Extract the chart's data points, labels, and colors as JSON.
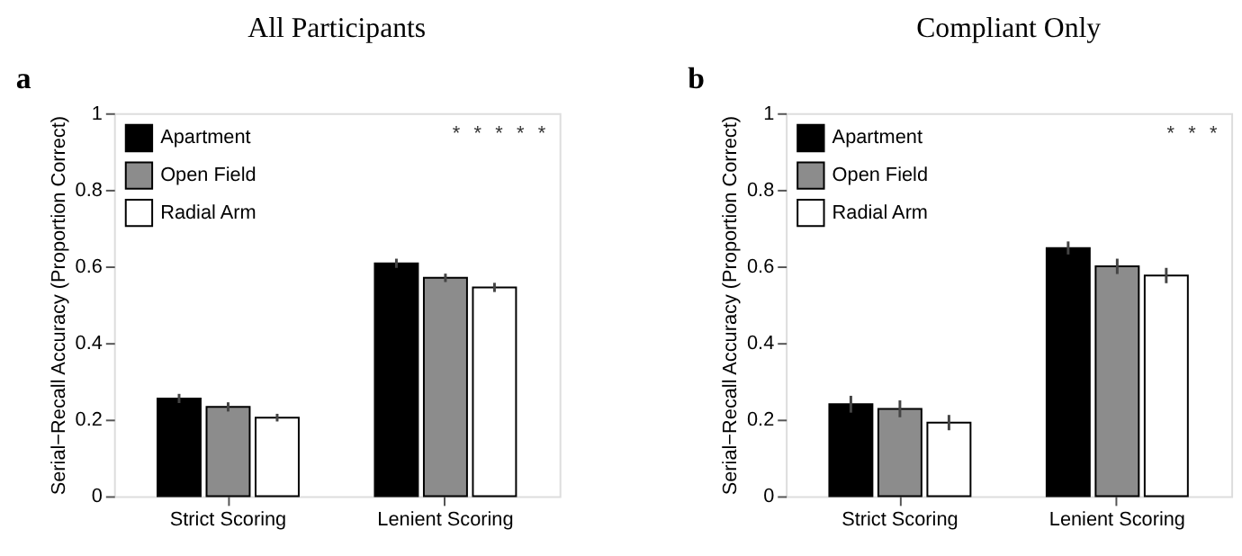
{
  "chart_data": [
    {
      "type": "bar",
      "title": "All Participants",
      "ylabel": "Serial−Recall Accuracy (Proportion Correct)",
      "categories": [
        "Strict Scoring",
        "Lenient Scoring"
      ],
      "legend": "top left",
      "grid": false,
      "ylim": [
        0,
        1
      ],
      "yticks": [
        0,
        0.2,
        0.4,
        0.6,
        0.8,
        1
      ],
      "annotations": [
        "a",
        "*",
        "*",
        "*",
        "*",
        "*"
      ],
      "series": [
        {
          "name": "Apartment",
          "color": "#000000",
          "values": [
            0.255,
            0.608
          ],
          "errors": [
            0.012,
            0.012
          ]
        },
        {
          "name": "Open Field",
          "color": "#8c8c8c",
          "values": [
            0.233,
            0.57
          ],
          "errors": [
            0.012,
            0.011
          ]
        },
        {
          "name": "Radial Arm",
          "color": "#ffffff",
          "values": [
            0.205,
            0.545
          ],
          "errors": [
            0.01,
            0.012
          ]
        }
      ]
    },
    {
      "type": "bar",
      "title": "Compliant Only",
      "ylabel": "Serial−Recall Accuracy (Proportion Correct)",
      "categories": [
        "Strict Scoring",
        "Lenient Scoring"
      ],
      "legend": "top left",
      "grid": false,
      "ylim": [
        0,
        1
      ],
      "yticks": [
        0,
        0.2,
        0.4,
        0.6,
        0.8,
        1
      ],
      "annotations": [
        "b",
        "*",
        "*",
        "*"
      ],
      "series": [
        {
          "name": "Apartment",
          "color": "#000000",
          "values": [
            0.24,
            0.648
          ],
          "errors": [
            0.022,
            0.017
          ]
        },
        {
          "name": "Open Field",
          "color": "#8c8c8c",
          "values": [
            0.228,
            0.6
          ],
          "errors": [
            0.022,
            0.02
          ]
        },
        {
          "name": "Radial Arm",
          "color": "#ffffff",
          "values": [
            0.192,
            0.576
          ],
          "errors": [
            0.02,
            0.02
          ]
        }
      ]
    }
  ]
}
